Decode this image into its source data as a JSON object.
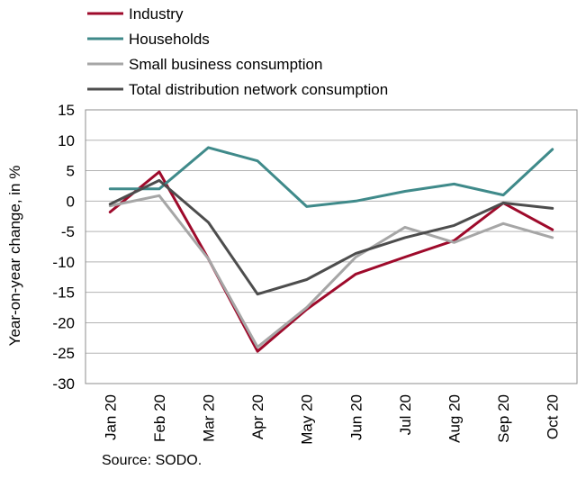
{
  "chart_data": {
    "type": "line",
    "categories": [
      "Jan 20",
      "Feb 20",
      "Mar 20",
      "Apr 20",
      "May 20",
      "Jun 20",
      "Jul 20",
      "Aug 20",
      "Sep 20",
      "Oct 20"
    ],
    "series": [
      {
        "name": "Industry",
        "color": "#9e0a2b",
        "values": [
          -1.8,
          4.8,
          -9.5,
          -24.7,
          -17.8,
          -12.0,
          -9.2,
          -6.5,
          -0.3,
          -4.7
        ]
      },
      {
        "name": "Households",
        "color": "#3f8a8a",
        "values": [
          2.0,
          2.0,
          8.8,
          6.6,
          -0.9,
          0.0,
          1.6,
          2.8,
          1.0,
          8.5
        ]
      },
      {
        "name": "Small business consumption",
        "color": "#a6a6a6",
        "values": [
          -0.8,
          0.9,
          -9.5,
          -24.0,
          -17.5,
          -9.2,
          -4.3,
          -6.8,
          -3.7,
          -6.0
        ]
      },
      {
        "name": "Total distribution network consumption",
        "color": "#4d4d4d",
        "values": [
          -0.5,
          3.4,
          -3.5,
          -15.3,
          -12.9,
          -8.6,
          -6.0,
          -4.0,
          -0.3,
          -1.2
        ]
      }
    ],
    "ylabel": "Year-on-year change, in %",
    "ylim": [
      -30,
      15
    ],
    "yticks": [
      "15",
      "10",
      "5",
      "0",
      "-5",
      "-10",
      "-15",
      "-20",
      "-25",
      "-30"
    ],
    "grid": true,
    "legend": "top-left"
  },
  "source": "Source: SODO."
}
